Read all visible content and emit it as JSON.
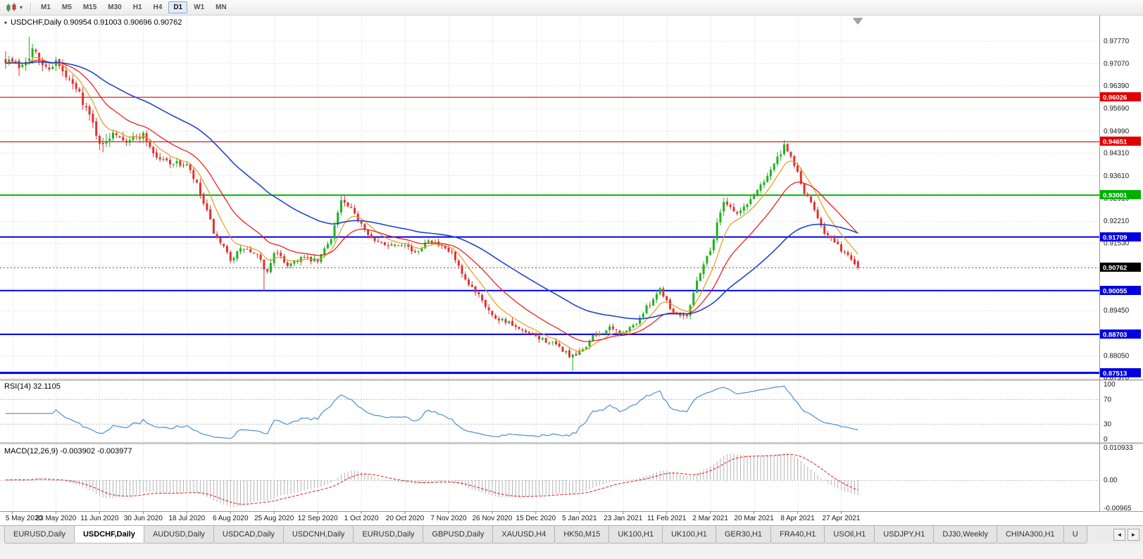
{
  "toolbar": {
    "timeframes": [
      {
        "label": "M1",
        "active": false
      },
      {
        "label": "M5",
        "active": false
      },
      {
        "label": "M15",
        "active": false
      },
      {
        "label": "M30",
        "active": false
      },
      {
        "label": "H1",
        "active": false
      },
      {
        "label": "H4",
        "active": false
      },
      {
        "label": "D1",
        "active": true
      },
      {
        "label": "W1",
        "active": false
      },
      {
        "label": "MN",
        "active": false
      }
    ]
  },
  "icons": {
    "chart_dropdown": "▾",
    "tab_scroll_left": "◄",
    "tab_scroll_right": "►"
  },
  "chart": {
    "title": "USDCHF,Daily 0.90954 0.91003 0.90696 0.90762",
    "symbol": "USDCHF",
    "period": "Daily",
    "open": "0.90954",
    "high": "0.91003",
    "low": "0.90696",
    "close": "0.90762",
    "current_price": "0.90762",
    "y_axis_labels": [
      "0.97770",
      "0.97070",
      "0.96390",
      "0.95690",
      "0.94990",
      "0.94310",
      "0.93610",
      "0.92910",
      "0.92210",
      "0.91530",
      "0.90830",
      "0.90130",
      "0.89450",
      "0.88750",
      "0.88050",
      "0.87370"
    ],
    "x_axis_labels": [
      "5 May 2020",
      "23 May 2020",
      "11 Jun 2020",
      "30 Jun 2020",
      "18 Jul 2020",
      "6 Aug 2020",
      "25 Aug 2020",
      "12 Sep 2020",
      "1 Oct 2020",
      "20 Oct 2020",
      "7 Nov 2020",
      "26 Nov 2020",
      "15 Dec 2020",
      "5 Jan 2021",
      "23 Jan 2021",
      "11 Feb 2021",
      "2 Mar 2021",
      "20 Mar 2021",
      "8 Apr 2021",
      "27 Apr 2021"
    ],
    "horizontal_levels": [
      {
        "value": 0.96026,
        "label": "0.96026",
        "color": "#e00000",
        "width": 1.2
      },
      {
        "value": 0.94651,
        "label": "0.94651",
        "color": "#e00000",
        "width": 1.2
      },
      {
        "value": 0.93001,
        "label": "0.93001",
        "color": "#00b000",
        "width": 2
      },
      {
        "value": 0.91709,
        "label": "0.91709",
        "color": "#0000e0",
        "width": 2
      },
      {
        "value": 0.90055,
        "label": "0.90055",
        "color": "#0000e0",
        "width": 2
      },
      {
        "value": 0.88703,
        "label": "0.88703",
        "color": "#0000e0",
        "width": 2
      },
      {
        "value": 0.87513,
        "label": "0.87513",
        "color": "#0000e0",
        "width": 3
      }
    ],
    "price_line": {
      "label": "0.90762",
      "value": 0.90762,
      "badge_color": "#000000"
    },
    "colors": {
      "bull": "#1db31d",
      "bear": "#e03232",
      "grid": "#d6d6d6",
      "axis_text": "#1a1a1a"
    }
  },
  "rsi_panel": {
    "label": "RSI(14) 32.1105",
    "name": "RSI",
    "period": 14,
    "value": "32.1105",
    "axis_labels": [
      "100",
      "70",
      "30",
      "0"
    ],
    "levels": [
      70,
      30
    ],
    "line_color": "#4a90d2"
  },
  "macd_panel": {
    "label": "MACD(12,26,9) -0.003902 -0.003977",
    "name": "MACD",
    "params": "12,26,9",
    "main_value": "-0.003902",
    "signal_value": "-0.003977",
    "axis_labels": [
      {
        "text": "0.010933",
        "value": 0.010933
      },
      {
        "text": "0.00",
        "value": 0.0
      },
      {
        "text": "-0.00965",
        "value": -0.00965
      }
    ],
    "histogram_color": "#b4b4b4",
    "signal_color": "#e02020"
  },
  "tabs": {
    "items": [
      {
        "label": "EURUSD,Daily",
        "active": false
      },
      {
        "label": "USDCHF,Daily",
        "active": true
      },
      {
        "label": "AUDUSD,Daily",
        "active": false
      },
      {
        "label": "USDCAD,Daily",
        "active": false
      },
      {
        "label": "USDCNH,Daily",
        "active": false
      },
      {
        "label": "EURUSD,Daily",
        "active": false
      },
      {
        "label": "GBPUSD,Daily",
        "active": false
      },
      {
        "label": "XAUUSD,H4",
        "active": false
      },
      {
        "label": "HK50,M15",
        "active": false
      },
      {
        "label": "UK100,H1",
        "active": false
      },
      {
        "label": "UK100,H1",
        "active": false
      },
      {
        "label": "GER30,H1",
        "active": false
      },
      {
        "label": "FRA40,H1",
        "active": false
      },
      {
        "label": "USOil,H1",
        "active": false
      },
      {
        "label": "USDJPY,H1",
        "active": false
      },
      {
        "label": "DJ30,Weekly",
        "active": false
      },
      {
        "label": "CHINA300,H1",
        "active": false
      },
      {
        "label": "U",
        "active": false
      }
    ]
  },
  "chart_data": {
    "type": "candlestick",
    "symbol": "USDCHF",
    "timeframe": "D1",
    "candle_count": 255,
    "ylim": [
      0.8733,
      0.9851
    ],
    "x_ticks": {
      "first_index": 2,
      "step": 13
    },
    "last_candle": {
      "open": 0.90954,
      "high": 0.91003,
      "low": 0.90696,
      "close": 0.90762
    },
    "price_path_anchors": [
      [
        0,
        0.9725,
        0.005
      ],
      [
        4,
        0.97,
        0.005
      ],
      [
        8,
        0.9748,
        0.0045
      ],
      [
        12,
        0.9692,
        0.004
      ],
      [
        15,
        0.9712,
        0.004
      ],
      [
        18,
        0.9662,
        0.0035
      ],
      [
        22,
        0.9615,
        0.0035
      ],
      [
        26,
        0.952,
        0.004
      ],
      [
        29,
        0.9445,
        0.005
      ],
      [
        32,
        0.9502,
        0.004
      ],
      [
        36,
        0.947,
        0.003
      ],
      [
        41,
        0.9487,
        0.003
      ],
      [
        45,
        0.9415,
        0.0028
      ],
      [
        50,
        0.94,
        0.0025
      ],
      [
        54,
        0.9392,
        0.0025
      ],
      [
        57,
        0.933,
        0.003
      ],
      [
        60,
        0.9245,
        0.003
      ],
      [
        63,
        0.916,
        0.003
      ],
      [
        67,
        0.9105,
        0.0028
      ],
      [
        71,
        0.9137,
        0.0025
      ],
      [
        75,
        0.911,
        0.0025
      ],
      [
        78,
        0.906,
        0.0028
      ],
      [
        80,
        0.9127,
        0.0025
      ],
      [
        84,
        0.9085,
        0.0022
      ],
      [
        88,
        0.9107,
        0.0022
      ],
      [
        93,
        0.9095,
        0.0022
      ],
      [
        97,
        0.9172,
        0.0025
      ],
      [
        100,
        0.9282,
        0.003
      ],
      [
        103,
        0.9252,
        0.0025
      ],
      [
        106,
        0.9215,
        0.0022
      ],
      [
        110,
        0.9155,
        0.0022
      ],
      [
        115,
        0.9147,
        0.002
      ],
      [
        119,
        0.9152,
        0.002
      ],
      [
        122,
        0.9117,
        0.0022
      ],
      [
        126,
        0.9167,
        0.002
      ],
      [
        130,
        0.9137,
        0.002
      ],
      [
        133,
        0.912,
        0.0022
      ],
      [
        137,
        0.903,
        0.0028
      ],
      [
        141,
        0.8997,
        0.0025
      ],
      [
        145,
        0.8927,
        0.0025
      ],
      [
        149,
        0.8912,
        0.0022
      ],
      [
        153,
        0.8882,
        0.0022
      ],
      [
        158,
        0.8862,
        0.0022
      ],
      [
        162,
        0.8847,
        0.0022
      ],
      [
        166,
        0.8822,
        0.0022
      ],
      [
        169,
        0.8797,
        0.003
      ],
      [
        171,
        0.8812,
        0.0025
      ],
      [
        175,
        0.8862,
        0.0022
      ],
      [
        180,
        0.8888,
        0.002
      ],
      [
        184,
        0.8872,
        0.002
      ],
      [
        188,
        0.8907,
        0.002
      ],
      [
        192,
        0.8967,
        0.0022
      ],
      [
        195,
        0.9012,
        0.0022
      ],
      [
        199,
        0.8937,
        0.0022
      ],
      [
        203,
        0.8932,
        0.0022
      ],
      [
        207,
        0.9067,
        0.003
      ],
      [
        210,
        0.9132,
        0.003
      ],
      [
        214,
        0.9287,
        0.003
      ],
      [
        218,
        0.9242,
        0.0025
      ],
      [
        221,
        0.9272,
        0.0025
      ],
      [
        225,
        0.9332,
        0.0028
      ],
      [
        229,
        0.9397,
        0.0028
      ],
      [
        232,
        0.9447,
        0.0028
      ],
      [
        235,
        0.9397,
        0.0025
      ],
      [
        238,
        0.9307,
        0.0025
      ],
      [
        241,
        0.9257,
        0.0022
      ],
      [
        244,
        0.9187,
        0.0022
      ],
      [
        247,
        0.9152,
        0.0022
      ],
      [
        250,
        0.9122,
        0.002
      ],
      [
        253,
        0.9092,
        0.002
      ],
      [
        254,
        0.9076,
        0.0018
      ]
    ],
    "spikes": [
      {
        "index": 7,
        "high": 0.979
      },
      {
        "index": 77,
        "low": 0.9004
      },
      {
        "index": 100,
        "high": 0.9298
      },
      {
        "index": 169,
        "low": 0.8757
      },
      {
        "index": 232,
        "high": 0.947
      }
    ],
    "moving_averages": [
      {
        "type": "ema",
        "period": 8,
        "color": "#e09c20"
      },
      {
        "type": "ema",
        "period": 20,
        "color": "#ee1111"
      },
      {
        "type": "ema",
        "period": 55,
        "color": "#2244cc"
      }
    ],
    "rsi": {
      "period": 14,
      "last_value": 32.1105,
      "range": [
        0,
        100
      ]
    },
    "macd": {
      "fast": 12,
      "slow": 26,
      "signal": 9,
      "last_main": -0.003902,
      "last_signal": -0.003977,
      "ylim": [
        -0.0105,
        0.012
      ]
    },
    "seed": 7
  }
}
